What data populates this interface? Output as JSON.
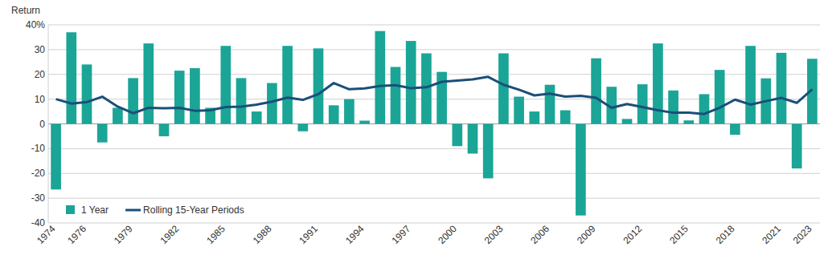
{
  "chart_data": {
    "type": "bar",
    "y_label": "Return",
    "categories": [
      "1974",
      null,
      "1976",
      null,
      null,
      "1979",
      null,
      null,
      "1982",
      null,
      null,
      "1985",
      null,
      null,
      "1988",
      null,
      null,
      "1991",
      null,
      null,
      "1994",
      null,
      null,
      "1997",
      null,
      null,
      "2000",
      null,
      null,
      "2003",
      null,
      null,
      "2006",
      null,
      null,
      "2009",
      null,
      null,
      "2012",
      null,
      null,
      "2015",
      null,
      null,
      "2018",
      null,
      null,
      "2021",
      null,
      "2023"
    ],
    "series": [
      {
        "name": "1 Year",
        "type": "bar",
        "color": "#1aa597",
        "values": [
          -26.5,
          37,
          24,
          -7.5,
          6.5,
          18.5,
          32.5,
          -5,
          21.5,
          22.5,
          6.5,
          31.5,
          18.5,
          5,
          16.5,
          31.5,
          -3,
          30.5,
          7.5,
          10,
          1.3,
          37.5,
          23,
          33.5,
          28.5,
          21,
          -9,
          -12,
          -22,
          28.5,
          11,
          5,
          15.8,
          5.5,
          -37,
          26.5,
          15,
          2,
          16,
          32.5,
          13.5,
          1.4,
          12,
          21.8,
          -4.4,
          31.5,
          18.4,
          28.7,
          -18,
          26.3
        ]
      },
      {
        "name": "Rolling 15-Year Periods",
        "type": "line",
        "color": "#1b4f78",
        "values": [
          10,
          8.2,
          8.8,
          11,
          7,
          4.3,
          6.5,
          6.3,
          6.5,
          5.3,
          5.5,
          6.8,
          7,
          7.8,
          9,
          10.6,
          9.7,
          12,
          16.5,
          14,
          14.3,
          15.3,
          15.6,
          14.4,
          14.8,
          17,
          17.5,
          18,
          19,
          15.8,
          13.8,
          11.5,
          12.2,
          11,
          11.3,
          10.5,
          6.5,
          8,
          6.8,
          5.5,
          4.5,
          4.5,
          4,
          6.5,
          9.8,
          7.8,
          9.2,
          10.5,
          8.5,
          14
        ]
      }
    ],
    "ylim": [
      -40,
      40
    ],
    "yticks": [
      -40,
      -30,
      -20,
      -10,
      0,
      10,
      20,
      30,
      {
        "value": 40,
        "label": "40%"
      }
    ],
    "grid": true,
    "legend": "lower left"
  }
}
